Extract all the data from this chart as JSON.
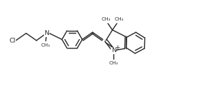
{
  "bg_color": "#ffffff",
  "line_color": "#2a2a2a",
  "line_width": 1.05,
  "font_size": 6.8,
  "fig_width": 3.04,
  "fig_height": 1.24,
  "dpi": 100,
  "xlim": [
    -0.3,
    10.0
  ],
  "ylim": [
    0.5,
    4.2
  ]
}
